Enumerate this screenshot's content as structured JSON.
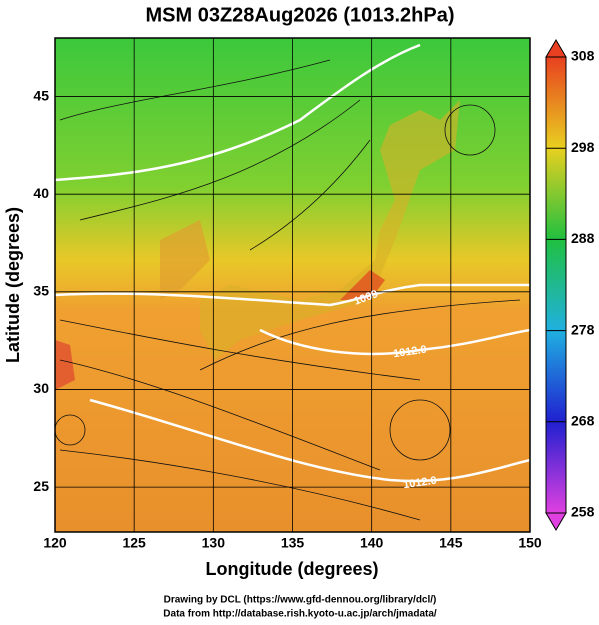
{
  "title": "MSM 03Z28Aug2026 (1013.2hPa)",
  "x_axis": {
    "label": "Longitude (degrees)",
    "lim": [
      120,
      150
    ],
    "ticks": [
      120,
      125,
      130,
      135,
      140,
      145,
      150
    ]
  },
  "y_axis": {
    "label": "Latitude  (degrees)",
    "lim": [
      22.7,
      48
    ],
    "ticks": [
      25,
      30,
      35,
      40,
      45
    ]
  },
  "colorbar": {
    "lim": [
      258,
      308
    ],
    "ticks": [
      258,
      268,
      278,
      288,
      298,
      308
    ]
  },
  "contour_labels": [
    "1009",
    "1012.0",
    "1012.0"
  ],
  "credits": [
    "Drawing by DCL (https://www.gfd-dennou.org/library/dcl/)",
    "Data from http://database.rish.kyoto-u.ac.jp/arch/jmadata/"
  ]
}
